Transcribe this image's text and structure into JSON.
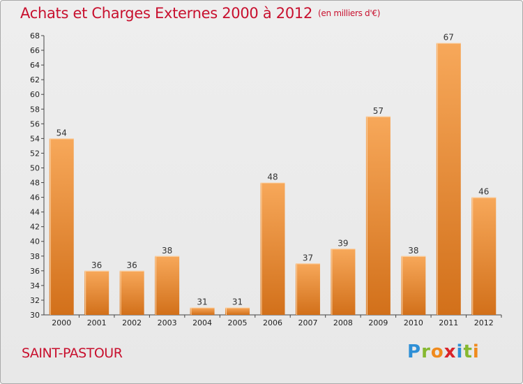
{
  "header": {
    "title": "Achats et Charges Externes 2000 à 2012",
    "subtitle": "(en milliers d'€)"
  },
  "footer": {
    "commune": "SAINT-PASTOUR",
    "brand": [
      "P",
      "r",
      "o",
      "x",
      "i",
      "t",
      "i"
    ]
  },
  "colors": {
    "title": "#c8102e",
    "bar_light": "#f7a85a",
    "bar_dark": "#d2701a"
  },
  "chart_data": {
    "type": "bar",
    "categories": [
      "2000",
      "2001",
      "2002",
      "2003",
      "2004",
      "2005",
      "2006",
      "2007",
      "2008",
      "2009",
      "2010",
      "2011",
      "2012"
    ],
    "values": [
      54,
      36,
      36,
      38,
      31,
      31,
      48,
      37,
      39,
      57,
      38,
      67,
      46
    ],
    "ylim": [
      30,
      68
    ],
    "yticks": [
      30,
      32,
      34,
      36,
      38,
      40,
      42,
      44,
      46,
      48,
      50,
      52,
      54,
      56,
      58,
      60,
      62,
      64,
      66,
      68
    ],
    "grid": false,
    "legend": "none"
  }
}
